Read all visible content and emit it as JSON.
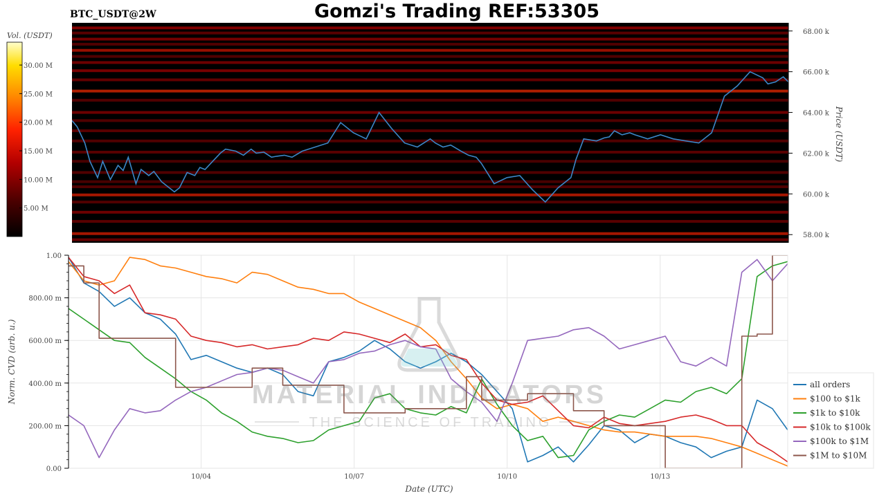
{
  "header": {
    "symbol": "BTC_USDT@2W",
    "title": "Gomzi's Trading REF:53305"
  },
  "colorbar": {
    "label": "Vol. (USDT)",
    "ticks": [
      "5.00 M",
      "10.00 M",
      "15.00 M",
      "20.00 M",
      "25.00 M",
      "30.00 M"
    ],
    "tick_values": [
      5,
      10,
      15,
      20,
      25,
      30
    ],
    "range": [
      0,
      34
    ],
    "colors": [
      "#000000",
      "#4a0000",
      "#b30000",
      "#ff2200",
      "#ff8800",
      "#ffdd00",
      "#ffffcc"
    ]
  },
  "watermark": {
    "line1": "MATERIAL INDICATORS",
    "line2": "THE SCIENCE OF TRADING"
  },
  "chart_data": [
    {
      "type": "heatmap",
      "title": "",
      "ylabel": "Price (USDT)",
      "ylim": [
        57600,
        68400
      ],
      "y_ticks": [
        "58.00 k",
        "60.00 k",
        "62.00 k",
        "64.00 k",
        "66.00 k",
        "68.00 k"
      ],
      "y_tick_values": [
        58000,
        60000,
        62000,
        64000,
        66000,
        68000
      ],
      "x_domain_days": [
        0,
        14
      ],
      "bands": [
        {
          "price": 68150,
          "level": 0.55
        },
        {
          "price": 67900,
          "level": 0.35
        },
        {
          "price": 67600,
          "level": 0.5
        },
        {
          "price": 67350,
          "level": 0.3
        },
        {
          "price": 67050,
          "level": 0.65
        },
        {
          "price": 66750,
          "level": 0.3
        },
        {
          "price": 66450,
          "level": 0.45
        },
        {
          "price": 66050,
          "level": 0.5
        },
        {
          "price": 65600,
          "level": 0.4
        },
        {
          "price": 65050,
          "level": 0.75
        },
        {
          "price": 64600,
          "level": 0.3
        },
        {
          "price": 64000,
          "level": 0.45
        },
        {
          "price": 63600,
          "level": 0.3
        },
        {
          "price": 63100,
          "level": 0.35
        },
        {
          "price": 62600,
          "level": 0.3
        },
        {
          "price": 62050,
          "level": 0.35
        },
        {
          "price": 61600,
          "level": 0.25
        },
        {
          "price": 61050,
          "level": 0.3
        },
        {
          "price": 60600,
          "level": 0.25
        },
        {
          "price": 60350,
          "level": 0.3
        },
        {
          "price": 59950,
          "level": 0.7
        },
        {
          "price": 59600,
          "level": 0.3
        },
        {
          "price": 59100,
          "level": 0.45
        },
        {
          "price": 58650,
          "level": 0.35
        },
        {
          "price": 58050,
          "level": 0.7
        },
        {
          "price": 57750,
          "level": 0.4
        }
      ],
      "price_series": {
        "name": "",
        "color": "#3b87c8",
        "x_days": [
          0.0,
          0.1,
          0.25,
          0.35,
          0.5,
          0.6,
          0.75,
          0.9,
          1.0,
          1.1,
          1.25,
          1.35,
          1.5,
          1.6,
          1.75,
          1.9,
          2.0,
          2.1,
          2.25,
          2.4,
          2.5,
          2.6,
          2.75,
          2.9,
          3.0,
          3.2,
          3.35,
          3.5,
          3.6,
          3.75,
          3.9,
          4.0,
          4.15,
          4.3,
          4.5,
          4.75,
          5.0,
          5.25,
          5.5,
          5.75,
          6.0,
          6.25,
          6.5,
          6.75,
          7.0,
          7.1,
          7.25,
          7.4,
          7.5,
          7.6,
          7.75,
          7.9,
          8.0,
          8.25,
          8.5,
          8.75,
          9.0,
          9.25,
          9.5,
          9.75,
          9.85,
          10.0,
          10.25,
          10.4,
          10.5,
          10.6,
          10.75,
          10.9,
          11.0,
          11.25,
          11.5,
          11.75,
          12.0,
          12.25,
          12.5,
          12.75,
          13.0,
          13.25,
          13.5,
          13.6,
          13.75,
          13.9,
          14.0,
          14.1,
          14.25,
          14.4,
          14.5,
          14.6,
          14.75,
          14.9,
          15.0
        ],
        "y": [
          63600,
          63300,
          62500,
          61600,
          60800,
          61600,
          60700,
          61400,
          61150,
          61800,
          60500,
          61200,
          60900,
          61100,
          60600,
          60300,
          60100,
          60300,
          61050,
          60900,
          61300,
          61200,
          61600,
          62000,
          62200,
          62100,
          61900,
          62200,
          62000,
          62050,
          61800,
          61850,
          61900,
          61800,
          62100,
          62300,
          62500,
          63500,
          63000,
          62700,
          64000,
          63200,
          62500,
          62300,
          62700,
          62500,
          62300,
          62400,
          62250,
          62100,
          61900,
          61800,
          61500,
          60500,
          60800,
          60900,
          60200,
          59600,
          60300,
          60800,
          61700,
          62700,
          62600,
          62750,
          62800,
          63100,
          62900,
          63000,
          62900,
          62700,
          62900,
          62700,
          62600,
          62500,
          63000,
          64800,
          65300,
          66000,
          65700,
          65400,
          65500,
          65750,
          65500,
          65600,
          65500,
          65400,
          65500,
          65450,
          65500,
          65500,
          65500
        ]
      }
    },
    {
      "type": "line",
      "xlabel": "Date (UTC)",
      "ylabel": "Norm. CVD (arb. u.)",
      "ylim": [
        0,
        1
      ],
      "y_ticks": [
        "0.00",
        "200.00 m",
        "400.00 m",
        "600.00 m",
        "800.00 m",
        "1.00"
      ],
      "y_tick_values": [
        0,
        0.2,
        0.4,
        0.6,
        0.8,
        1.0
      ],
      "x_ticks": [
        "10/04",
        "10/07",
        "10/10",
        "10/13"
      ],
      "x_tick_values": [
        2.6,
        5.6,
        8.6,
        11.6
      ],
      "x_days_range": [
        0,
        14.1
      ],
      "legend_position": "bottom-right",
      "x": [
        0.0,
        0.3,
        0.6,
        0.9,
        1.2,
        1.5,
        1.8,
        2.1,
        2.4,
        2.7,
        3.0,
        3.3,
        3.6,
        3.9,
        4.2,
        4.5,
        4.8,
        5.1,
        5.4,
        5.7,
        6.0,
        6.3,
        6.6,
        6.9,
        7.2,
        7.5,
        7.8,
        8.1,
        8.4,
        8.7,
        9.0,
        9.3,
        9.6,
        9.9,
        10.2,
        10.5,
        10.8,
        11.1,
        11.4,
        11.7,
        12.0,
        12.3,
        12.6,
        12.9,
        13.2,
        13.5,
        13.8,
        14.1
      ],
      "series": [
        {
          "name": "all orders",
          "color": "#1f77b4",
          "values": [
            0.99,
            0.87,
            0.83,
            0.76,
            0.8,
            0.73,
            0.7,
            0.63,
            0.51,
            0.53,
            0.5,
            0.47,
            0.45,
            0.47,
            0.44,
            0.36,
            0.34,
            0.5,
            0.52,
            0.55,
            0.6,
            0.56,
            0.5,
            0.47,
            0.5,
            0.54,
            0.5,
            0.44,
            0.36,
            0.28,
            0.03,
            0.06,
            0.1,
            0.03,
            0.11,
            0.2,
            0.18,
            0.12,
            0.16,
            0.15,
            0.12,
            0.1,
            0.05,
            0.08,
            0.1,
            0.32,
            0.28,
            0.18
          ]
        },
        {
          "name": "$100 to $1k",
          "color": "#ff7f0e",
          "values": [
            0.97,
            0.88,
            0.86,
            0.88,
            0.99,
            0.98,
            0.95,
            0.94,
            0.92,
            0.9,
            0.89,
            0.87,
            0.92,
            0.91,
            0.88,
            0.85,
            0.84,
            0.82,
            0.82,
            0.78,
            0.75,
            0.72,
            0.69,
            0.66,
            0.6,
            0.5,
            0.42,
            0.33,
            0.28,
            0.3,
            0.28,
            0.22,
            0.24,
            0.22,
            0.2,
            0.18,
            0.17,
            0.17,
            0.16,
            0.15,
            0.15,
            0.15,
            0.14,
            0.12,
            0.1,
            0.07,
            0.04,
            0.01
          ]
        },
        {
          "name": "$1k to $10k",
          "color": "#2ca02c",
          "values": [
            0.75,
            0.7,
            0.65,
            0.6,
            0.59,
            0.52,
            0.47,
            0.42,
            0.36,
            0.32,
            0.26,
            0.22,
            0.17,
            0.15,
            0.14,
            0.12,
            0.13,
            0.18,
            0.2,
            0.22,
            0.33,
            0.35,
            0.28,
            0.26,
            0.25,
            0.29,
            0.26,
            0.42,
            0.3,
            0.2,
            0.13,
            0.15,
            0.05,
            0.06,
            0.18,
            0.22,
            0.25,
            0.24,
            0.28,
            0.32,
            0.31,
            0.36,
            0.38,
            0.35,
            0.42,
            0.9,
            0.95,
            0.97
          ]
        },
        {
          "name": "$10k to $100k",
          "color": "#d62728",
          "values": [
            0.99,
            0.9,
            0.88,
            0.82,
            0.86,
            0.73,
            0.72,
            0.7,
            0.62,
            0.6,
            0.59,
            0.57,
            0.58,
            0.56,
            0.57,
            0.58,
            0.61,
            0.6,
            0.64,
            0.63,
            0.61,
            0.59,
            0.63,
            0.57,
            0.58,
            0.53,
            0.51,
            0.4,
            0.32,
            0.3,
            0.31,
            0.34,
            0.27,
            0.2,
            0.19,
            0.24,
            0.21,
            0.2,
            0.21,
            0.22,
            0.24,
            0.25,
            0.23,
            0.2,
            0.2,
            0.12,
            0.08,
            0.03
          ]
        },
        {
          "name": "$100k to $1M",
          "color": "#9467bd",
          "values": [
            0.25,
            0.2,
            0.05,
            0.18,
            0.28,
            0.26,
            0.27,
            0.32,
            0.36,
            0.38,
            0.41,
            0.44,
            0.45,
            0.47,
            0.46,
            0.43,
            0.4,
            0.5,
            0.51,
            0.54,
            0.55,
            0.58,
            0.6,
            0.57,
            0.56,
            0.42,
            0.36,
            0.31,
            0.22,
            0.4,
            0.6,
            0.61,
            0.62,
            0.65,
            0.66,
            0.62,
            0.56,
            0.58,
            0.6,
            0.62,
            0.5,
            0.48,
            0.52,
            0.48,
            0.92,
            0.98,
            0.88,
            0.96
          ]
        },
        {
          "name": "$1M to $10M",
          "color": "#8c564b",
          "step": true,
          "values": [
            0.95,
            0.87,
            0.61,
            0.61,
            0.61,
            0.61,
            0.61,
            0.38,
            0.38,
            0.38,
            0.38,
            0.38,
            0.47,
            0.47,
            0.39,
            0.39,
            0.39,
            0.39,
            0.26,
            0.26,
            0.26,
            0.26,
            0.28,
            0.28,
            0.28,
            0.28,
            0.43,
            0.32,
            0.32,
            0.32,
            0.35,
            0.35,
            0.35,
            0.27,
            0.27,
            0.2,
            0.2,
            0.2,
            0.2,
            0.0,
            0.0,
            0.0,
            0.0,
            0.0,
            0.62,
            0.63,
            1.0,
            1.0
          ]
        }
      ]
    }
  ]
}
